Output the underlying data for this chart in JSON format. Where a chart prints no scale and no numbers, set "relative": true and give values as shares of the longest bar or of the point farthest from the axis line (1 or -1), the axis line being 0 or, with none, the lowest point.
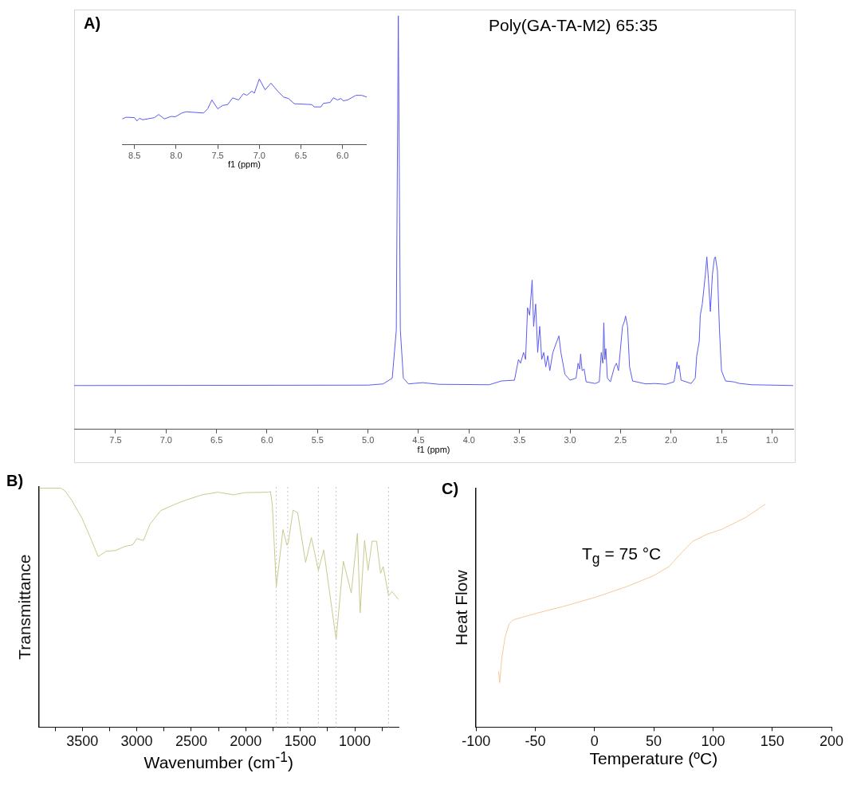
{
  "chart_data": [
    {
      "type": "line",
      "title": "A)",
      "subtitle": "Poly(GA-TA-M2) 65:35",
      "xlabel": "f1 (ppm)",
      "relative": true,
      "color": "#5b5bf0",
      "marker": "none",
      "line_style": "solid",
      "grid": false,
      "legend": false,
      "tick_labels": "x",
      "xlim": [
        7.91,
        0.79
      ],
      "xticks": [
        7.5,
        {
          "value": 7,
          "label": "7.0"
        },
        6.5,
        {
          "value": 6,
          "label": "6.0"
        },
        5.5,
        {
          "value": 5,
          "label": "5.0"
        },
        4.5,
        {
          "value": 4,
          "label": "4.0"
        },
        3.5,
        {
          "value": 3,
          "label": "3.0"
        },
        2.5,
        {
          "value": 2,
          "label": "2.0"
        },
        1.5,
        {
          "value": 1,
          "label": "1.0"
        }
      ],
      "x": [
        7.91,
        5.0,
        4.85,
        4.76,
        4.72,
        4.7,
        4.68,
        4.65,
        4.6,
        4.46,
        4.3,
        3.8,
        3.68,
        3.55,
        3.51,
        3.49,
        3.46,
        3.44,
        3.42,
        3.4,
        3.375,
        3.36,
        3.34,
        3.32,
        3.3,
        3.28,
        3.26,
        3.24,
        3.22,
        3.2,
        3.17,
        3.13,
        3.11,
        3.09,
        3.05,
        3.0,
        2.94,
        2.92,
        2.905,
        2.895,
        2.88,
        2.86,
        2.84,
        2.75,
        2.71,
        2.69,
        2.675,
        2.665,
        2.655,
        2.645,
        2.63,
        2.6,
        2.56,
        2.54,
        2.52,
        2.48,
        2.46,
        2.45,
        2.43,
        2.41,
        2.38,
        2.25,
        2.16,
        2.05,
        1.97,
        1.95,
        1.94,
        1.93,
        1.92,
        1.9,
        1.8,
        1.76,
        1.745,
        1.72,
        1.71,
        1.69,
        1.66,
        1.645,
        1.63,
        1.61,
        1.59,
        1.57,
        1.56,
        1.54,
        1.52,
        1.5,
        1.46,
        1.38,
        1.32,
        1.28,
        1.2,
        0.79
      ],
      "values": [
        0.106,
        0.107,
        0.11,
        0.124,
        0.24,
        1,
        0.24,
        0.124,
        0.11,
        0.113,
        0.109,
        0.108,
        0.117,
        0.119,
        0.169,
        0.16,
        0.186,
        0.169,
        0.294,
        0.276,
        0.361,
        0.249,
        0.303,
        0.186,
        0.249,
        0.169,
        0.186,
        0.151,
        0.178,
        0.142,
        0.186,
        0.213,
        0.226,
        0.186,
        0.133,
        0.119,
        0.124,
        0.16,
        0.146,
        0.182,
        0.142,
        0.146,
        0.115,
        0.111,
        0.115,
        0.186,
        0.16,
        0.258,
        0.169,
        0.195,
        0.124,
        0.115,
        0.151,
        0.16,
        0.142,
        0.249,
        0.262,
        0.274,
        0.249,
        0.151,
        0.117,
        0.11,
        0.111,
        0.109,
        0.115,
        0.146,
        0.163,
        0.146,
        0.155,
        0.119,
        0.111,
        0.124,
        0.178,
        0.213,
        0.276,
        0.303,
        0.374,
        0.417,
        0.365,
        0.285,
        0.374,
        0.414,
        0.417,
        0.383,
        0.24,
        0.142,
        0.117,
        0.115,
        0.111,
        0.11,
        0.108,
        0.106
      ]
    },
    {
      "type": "line",
      "xlabel": "f1 (ppm)",
      "relative": true,
      "color": "#5b5bf0",
      "marker": "none",
      "line_style": "solid",
      "grid": false,
      "legend": false,
      "tick_labels": "x",
      "xlim": [
        8.65,
        5.71
      ],
      "xticks": [
        8.5,
        {
          "value": 8,
          "label": "8.0"
        },
        7.5,
        {
          "value": 7,
          "label": "7.0"
        },
        6.5,
        {
          "value": 6,
          "label": "6.0"
        }
      ],
      "x": [
        8.646,
        8.6,
        8.5,
        8.47,
        8.44,
        8.4,
        8.26,
        8.21,
        8.14,
        8.06,
        8.01,
        7.93,
        7.88,
        7.67,
        7.62,
        7.57,
        7.5,
        7.44,
        7.38,
        7.32,
        7.25,
        7.19,
        7.15,
        7.09,
        7.06,
        7.0,
        6.93,
        6.86,
        6.78,
        6.71,
        6.65,
        6.58,
        6.37,
        6.34,
        6.26,
        6.23,
        6.15,
        6.11,
        6.06,
        6.02,
        5.99,
        5.94,
        5.84,
        5.77,
        5.71
      ],
      "values": [
        0.394,
        0.419,
        0.413,
        0.362,
        0.403,
        0.381,
        0.413,
        0.461,
        0.394,
        0.432,
        0.426,
        0.483,
        0.502,
        0.483,
        0.547,
        0.681,
        0.547,
        0.598,
        0.611,
        0.713,
        0.681,
        0.777,
        0.751,
        0.815,
        0.783,
        1,
        0.834,
        0.936,
        0.815,
        0.726,
        0.703,
        0.624,
        0.611,
        0.576,
        0.576,
        0.63,
        0.643,
        0.713,
        0.681,
        0.703,
        0.668,
        0.681,
        0.751,
        0.751,
        0.726
      ]
    },
    {
      "type": "line",
      "title": "B)",
      "xlabel": "Wavenumber (cm$^{-1}$)",
      "ylabel": "Transmittance",
      "relative": true,
      "color": "#c9c98f",
      "marker": "none",
      "line_style": "solid",
      "grid": false,
      "legend": false,
      "tick_labels": "x",
      "xlim": [
        3895,
        598
      ],
      "xticks": [
        {
          "value": 3750,
          "label": null
        },
        3500,
        {
          "value": 3250,
          "label": null
        },
        3000,
        {
          "value": 2750,
          "label": null
        },
        2500,
        {
          "value": 2250,
          "label": null
        },
        2000,
        {
          "value": 1750,
          "label": null
        },
        1500,
        {
          "value": 1250,
          "label": null
        },
        1000,
        {
          "value": 750,
          "label": null
        }
      ],
      "ref_lines": [
        {
          "axis": "x",
          "value": 1720,
          "color": "#c8c8c8",
          "line_style": "dotted"
        },
        {
          "axis": "x",
          "value": 1615,
          "color": "#c8c8c8",
          "line_style": "dotted"
        },
        {
          "axis": "x",
          "value": 1334,
          "color": "#c8c8c8",
          "line_style": "dotted"
        },
        {
          "axis": "x",
          "value": 1171,
          "color": "#c8c8c8",
          "line_style": "dotted"
        },
        {
          "axis": "x",
          "value": 690,
          "color": "#c8c8c8",
          "line_style": "dotted"
        }
      ],
      "x": [
        3895,
        3695,
        3659,
        3598,
        3500,
        3427,
        3354,
        3280,
        3195,
        3110,
        3037,
        3000,
        2939,
        2878,
        2780,
        2646,
        2549,
        2402,
        2256,
        2110,
        2012,
        1793,
        1773,
        1756,
        1720,
        1695,
        1659,
        1622,
        1610,
        1566,
        1524,
        1451,
        1398,
        1334,
        1285,
        1171,
        1105,
        1032,
        976,
        951,
        910,
        878,
        841,
        800,
        763,
        739,
        690,
        659,
        598
      ],
      "values": [
        1,
        1,
        0.989,
        0.95,
        0.872,
        0.794,
        0.714,
        0.736,
        0.739,
        0.756,
        0.763,
        0.789,
        0.781,
        0.85,
        0.906,
        0.933,
        0.95,
        0.972,
        0.983,
        0.972,
        0.981,
        0.983,
        0.986,
        0.928,
        0.589,
        0.683,
        0.826,
        0.761,
        0.772,
        0.908,
        0.897,
        0.689,
        0.794,
        0.656,
        0.741,
        0.367,
        0.694,
        0.561,
        0.811,
        0.478,
        0.781,
        0.656,
        0.778,
        0.778,
        0.644,
        0.672,
        0.55,
        0.567,
        0.533
      ]
    },
    {
      "type": "line",
      "title": "C)",
      "xlabel": "Temperature (ºC)",
      "ylabel": "Heat Flow",
      "relative": true,
      "color": "#f5c99a",
      "marker": "none",
      "line_style": "solid",
      "grid": false,
      "legend": false,
      "tick_labels": "x",
      "annotations": [
        "T$_{g}$ = 75 °C"
      ],
      "xlim": [
        -100,
        200
      ],
      "xticks": [
        -100,
        -50,
        0,
        50,
        100,
        150,
        200
      ],
      "x": [
        -81,
        -80,
        -78.5,
        -76.6,
        -75.5,
        -72.1,
        -68.8,
        -48.7,
        -26.4,
        0.4,
        27.1,
        49.5,
        62.8,
        74,
        82.9,
        94.1,
        107.4,
        127.5,
        144.3
      ],
      "values": [
        0.25,
        0.2,
        0.3,
        0.368,
        0.403,
        0.463,
        0.481,
        0.511,
        0.541,
        0.582,
        0.63,
        0.678,
        0.72,
        0.785,
        0.833,
        0.863,
        0.887,
        0.94,
        1
      ]
    }
  ]
}
